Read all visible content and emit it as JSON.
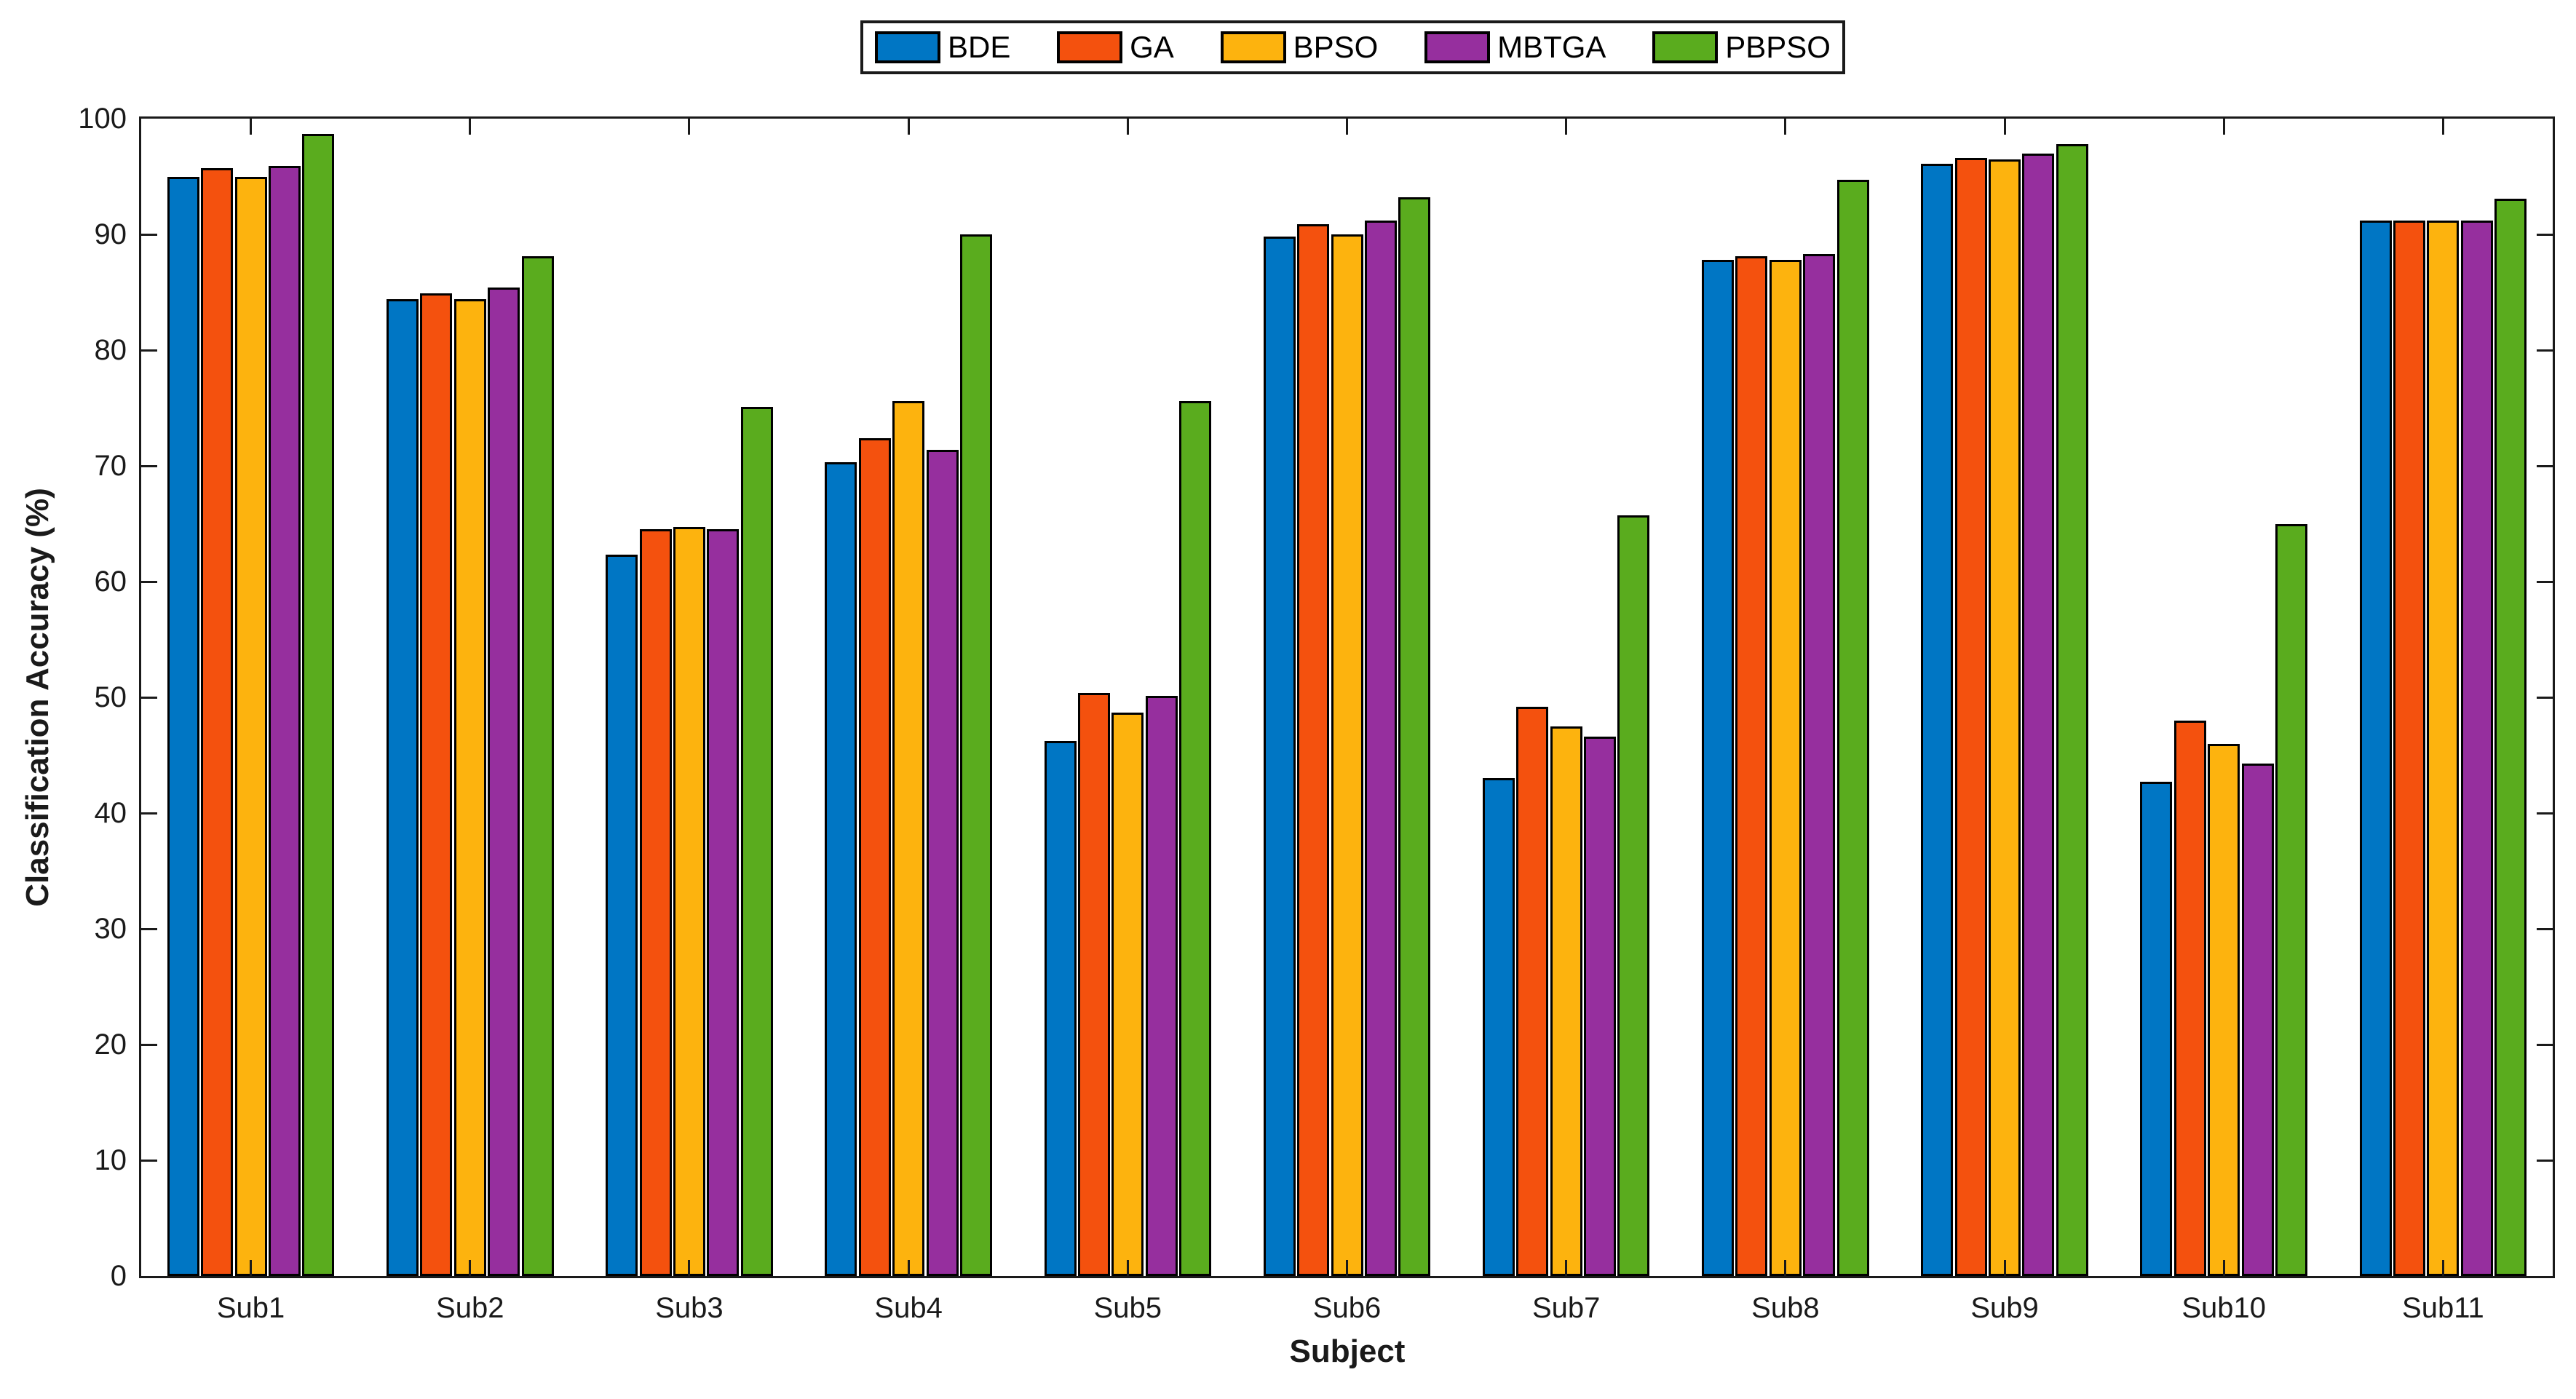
{
  "figure": {
    "y_axis_title": "Classification Accuracy (%)",
    "x_axis_title": "Subject"
  },
  "chart_data": {
    "type": "bar",
    "title": "",
    "xlabel": "Subject",
    "ylabel": "Classification Accuracy (%)",
    "categories": [
      "Sub1",
      "Sub2",
      "Sub3",
      "Sub4",
      "Sub5",
      "Sub6",
      "Sub7",
      "Sub8",
      "Sub9",
      "Sub10",
      "Sub11"
    ],
    "series": [
      {
        "name": "BDE",
        "color": "#0076C4",
        "values": [
          95.0,
          84.4,
          62.3,
          70.3,
          46.2,
          89.8,
          43.0,
          87.8,
          96.1,
          42.7,
          91.2
        ]
      },
      {
        "name": "GA",
        "color": "#F4510E",
        "values": [
          95.7,
          84.9,
          64.5,
          72.4,
          50.4,
          90.9,
          49.2,
          88.1,
          96.6,
          48.0,
          91.2
        ]
      },
      {
        "name": "BPSO",
        "color": "#FDB30E",
        "values": [
          95.0,
          84.4,
          64.7,
          75.6,
          48.7,
          90.0,
          47.5,
          87.8,
          96.5,
          46.0,
          91.2
        ]
      },
      {
        "name": "MBTGA",
        "color": "#962F9E",
        "values": [
          95.9,
          85.4,
          64.5,
          71.4,
          50.1,
          91.2,
          46.6,
          88.3,
          97.0,
          44.3,
          91.2
        ]
      },
      {
        "name": "PBPSO",
        "color": "#5AAC1E",
        "values": [
          98.7,
          88.1,
          75.1,
          90.0,
          75.6,
          93.2,
          65.7,
          94.7,
          97.8,
          65.0,
          93.1
        ]
      }
    ],
    "ylim": [
      0,
      100
    ],
    "yticks": [
      0,
      10,
      20,
      30,
      40,
      50,
      60,
      70,
      80,
      90,
      100
    ],
    "grid": false,
    "legend_position": "top-center",
    "bar_edge_color": "#000000"
  }
}
